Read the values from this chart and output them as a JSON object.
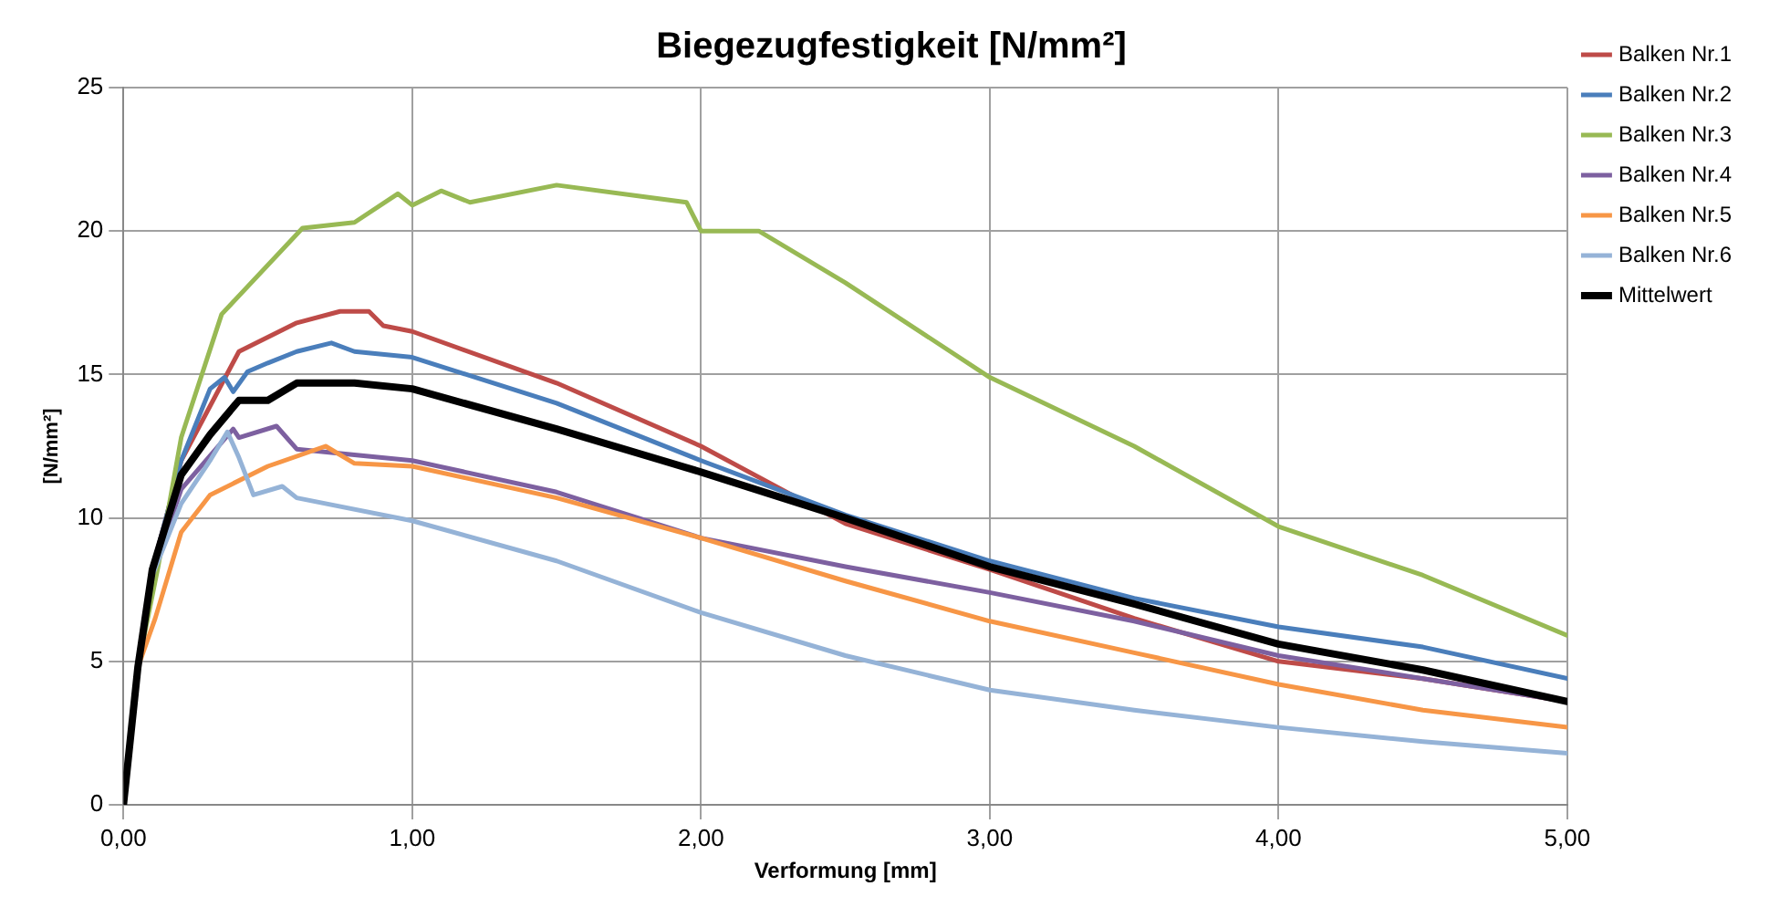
{
  "chart_data": {
    "type": "line",
    "title": "Biegezugfestigkeit [N/mm²]",
    "xlabel": "Verformung [mm]",
    "ylabel": "[N/mm²]",
    "xlim": [
      0,
      5
    ],
    "xticks": [
      {
        "value": 0,
        "label": "0,00"
      },
      {
        "value": 1,
        "label": "1,00"
      },
      {
        "value": 2,
        "label": "2,00"
      },
      {
        "value": 3,
        "label": "3,00"
      },
      {
        "value": 4,
        "label": "4,00"
      },
      {
        "value": 5,
        "label": "5,00"
      }
    ],
    "ylim": [
      0,
      25
    ],
    "yticks": [
      0,
      5,
      10,
      15,
      20,
      25
    ],
    "grid": true,
    "legend": "top right",
    "marker": "none",
    "line_style": "solid",
    "series": [
      {
        "name": "Balken Nr.1",
        "color": "#be4b48",
        "x": [
          0,
          0.05,
          0.1,
          0.2,
          0.4,
          0.6,
          0.75,
          0.85,
          0.9,
          1.0,
          1.5,
          2.0,
          2.5,
          3.0,
          3.5,
          4.0,
          4.5,
          5.0
        ],
        "values": [
          0,
          4.8,
          8.2,
          12,
          15.8,
          16.8,
          17.2,
          17.2,
          16.7,
          16.5,
          14.7,
          12.5,
          9.8,
          8.2,
          6.5,
          5,
          4.4,
          3.6
        ]
      },
      {
        "name": "Balken Nr.2",
        "color": "#4a7ebb",
        "x": [
          0,
          0.05,
          0.1,
          0.2,
          0.3,
          0.35,
          0.38,
          0.43,
          0.5,
          0.6,
          0.72,
          0.8,
          1.0,
          1.5,
          2.0,
          2.5,
          3.0,
          3.5,
          4.0,
          4.5,
          5.0
        ],
        "values": [
          0,
          4.8,
          8.2,
          12,
          14.5,
          14.9,
          14.4,
          15.1,
          15.4,
          15.8,
          16.1,
          15.8,
          15.6,
          14,
          12,
          10.1,
          8.5,
          7.2,
          6.2,
          5.5,
          4.4
        ]
      },
      {
        "name": "Balken Nr.3",
        "color": "#98b954",
        "x": [
          0,
          0.05,
          0.12,
          0.2,
          0.34,
          0.62,
          0.8,
          0.95,
          1.0,
          1.1,
          1.2,
          1.5,
          1.8,
          1.95,
          2.0,
          2.2,
          2.5,
          3.0,
          3.5,
          4.0,
          4.5,
          5.0
        ],
        "values": [
          0,
          4.8,
          8.3,
          12.8,
          17.1,
          20.1,
          20.3,
          21.3,
          20.9,
          21.4,
          21,
          21.6,
          21.2,
          21,
          20,
          20,
          18.2,
          14.9,
          12.5,
          9.7,
          8,
          5.9
        ]
      },
      {
        "name": "Balken Nr.4",
        "color": "#7d60a0",
        "x": [
          0,
          0.05,
          0.1,
          0.2,
          0.38,
          0.4,
          0.53,
          0.6,
          1.0,
          1.5,
          2.0,
          2.5,
          3.0,
          3.5,
          4.0,
          4.5,
          5.0
        ],
        "values": [
          0,
          4.8,
          8,
          11,
          13.1,
          12.8,
          13.2,
          12.4,
          12,
          10.9,
          9.3,
          8.3,
          7.4,
          6.4,
          5.2,
          4.4,
          3.6
        ]
      },
      {
        "name": "Balken Nr.5",
        "color": "#f79646",
        "x": [
          0,
          0.05,
          0.11,
          0.2,
          0.3,
          0.5,
          0.7,
          0.8,
          1.0,
          1.5,
          2.0,
          2.5,
          3.0,
          3.5,
          4.0,
          4.5,
          5.0
        ],
        "values": [
          0,
          4.8,
          6.5,
          9.5,
          10.8,
          11.8,
          12.5,
          11.9,
          11.8,
          10.7,
          9.3,
          7.8,
          6.4,
          5.3,
          4.2,
          3.3,
          2.7
        ]
      },
      {
        "name": "Balken Nr.6",
        "color": "#95b3d7",
        "x": [
          0,
          0.05,
          0.1,
          0.2,
          0.3,
          0.36,
          0.4,
          0.45,
          0.55,
          0.6,
          1.0,
          1.5,
          2.0,
          2.5,
          3.0,
          3.5,
          4.0,
          4.5,
          5.0
        ],
        "values": [
          0,
          4.8,
          8,
          10.5,
          12,
          13,
          12.1,
          10.8,
          11.1,
          10.7,
          9.9,
          8.5,
          6.7,
          5.2,
          4,
          3.3,
          2.7,
          2.2,
          1.8
        ]
      },
      {
        "name": "Mittelwert",
        "color": "#000000",
        "x": [
          0,
          0.05,
          0.1,
          0.2,
          0.3,
          0.4,
          0.5,
          0.6,
          0.8,
          1.0,
          1.5,
          2.0,
          2.5,
          3.0,
          3.5,
          4.0,
          4.5,
          5.0
        ],
        "values": [
          0,
          4.8,
          8.2,
          11.5,
          12.9,
          14.1,
          14.1,
          14.7,
          14.7,
          14.5,
          13.1,
          11.6,
          10,
          8.3,
          7,
          5.6,
          4.7,
          3.6
        ]
      }
    ]
  }
}
